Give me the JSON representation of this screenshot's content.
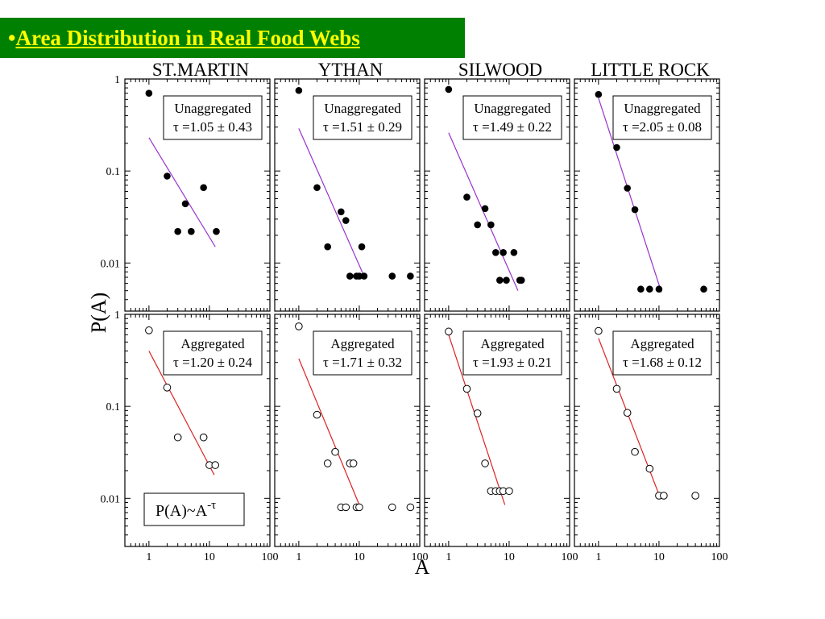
{
  "slide": {
    "bullet": "•",
    "title": "Area Distribution in Real Food Webs",
    "title_bg": "#008000",
    "title_color": "#ffff00"
  },
  "chart_data": {
    "type": "scatter",
    "ylabel": "P(A)",
    "xlabel": "A",
    "x_scale": "log",
    "y_scale": "log",
    "xlim": [
      0.4,
      100
    ],
    "ylim": [
      0.003,
      1
    ],
    "x_ticks": [
      "1",
      "10",
      "100"
    ],
    "y_ticks": [
      "0.01",
      "0.1",
      "1"
    ],
    "columns": [
      "ST.MARTIN",
      "YTHAN",
      "SILWOOD",
      "LITTLE ROCK"
    ],
    "formula_box": "P(A)~A",
    "formula_exp": "-τ",
    "panels": [
      {
        "web": "ST.MARTIN",
        "row": "top",
        "label": "Unaggregated",
        "tau": "τ =1.05 ± 0.43",
        "marker": "filled",
        "line_color": "#9933cc",
        "points": [
          [
            1,
            0.7
          ],
          [
            2,
            0.088
          ],
          [
            3,
            0.022
          ],
          [
            4,
            0.044
          ],
          [
            5,
            0.022
          ],
          [
            8,
            0.066
          ],
          [
            13,
            0.022
          ]
        ],
        "fit": [
          [
            1,
            0.23
          ],
          [
            12.5,
            0.015
          ]
        ]
      },
      {
        "web": "YTHAN",
        "row": "top",
        "label": "Unaggregated",
        "tau": "τ =1.51 ± 0.29",
        "marker": "filled",
        "line_color": "#9933cc",
        "points": [
          [
            1,
            0.75
          ],
          [
            2,
            0.066
          ],
          [
            3,
            0.015
          ],
          [
            5,
            0.036
          ],
          [
            6,
            0.029
          ],
          [
            7,
            0.0072
          ],
          [
            9,
            0.0072
          ],
          [
            10,
            0.0072
          ],
          [
            11,
            0.015
          ],
          [
            12,
            0.0072
          ],
          [
            35,
            0.0072
          ],
          [
            70,
            0.0072
          ]
        ],
        "fit": [
          [
            1,
            0.29
          ],
          [
            12,
            0.0072
          ]
        ]
      },
      {
        "web": "SILWOOD",
        "row": "top",
        "label": "Unaggregated",
        "tau": "τ =1.49 ± 0.22",
        "marker": "filled",
        "line_color": "#9933cc",
        "points": [
          [
            1,
            0.77
          ],
          [
            2,
            0.052
          ],
          [
            3,
            0.026
          ],
          [
            4,
            0.039
          ],
          [
            5,
            0.026
          ],
          [
            6,
            0.013
          ],
          [
            7,
            0.0065
          ],
          [
            8,
            0.013
          ],
          [
            9,
            0.0065
          ],
          [
            12,
            0.013
          ],
          [
            15,
            0.0065
          ],
          [
            16,
            0.0065
          ]
        ],
        "fit": [
          [
            1,
            0.26
          ],
          [
            14,
            0.005
          ]
        ]
      },
      {
        "web": "LITTLE ROCK",
        "row": "top",
        "label": "Unaggregated",
        "tau": "τ =2.05 ± 0.08",
        "marker": "filled",
        "line_color": "#9933cc",
        "points": [
          [
            1,
            0.68
          ],
          [
            2,
            0.18
          ],
          [
            3,
            0.065
          ],
          [
            4,
            0.038
          ],
          [
            5,
            0.0052
          ],
          [
            7,
            0.0052
          ],
          [
            10,
            0.0052
          ],
          [
            55,
            0.0052
          ]
        ],
        "fit": [
          [
            1,
            0.62
          ],
          [
            11,
            0.0048
          ]
        ]
      },
      {
        "web": "ST.MARTIN",
        "row": "bottom",
        "label": "Aggregated",
        "tau": "τ =1.20 ± 0.24",
        "marker": "open",
        "line_color": "#dd2222",
        "points": [
          [
            1,
            0.67
          ],
          [
            2,
            0.16
          ],
          [
            3,
            0.046
          ],
          [
            8,
            0.046
          ],
          [
            10,
            0.023
          ],
          [
            12.5,
            0.023
          ]
        ],
        "fit": [
          [
            1,
            0.4
          ],
          [
            12,
            0.018
          ]
        ]
      },
      {
        "web": "YTHAN",
        "row": "bottom",
        "label": "Aggregated",
        "tau": "τ =1.71 ± 0.32",
        "marker": "open",
        "line_color": "#dd2222",
        "points": [
          [
            1,
            0.74
          ],
          [
            2,
            0.081
          ],
          [
            3,
            0.024
          ],
          [
            4,
            0.032
          ],
          [
            5,
            0.008
          ],
          [
            6,
            0.008
          ],
          [
            7,
            0.024
          ],
          [
            8,
            0.024
          ],
          [
            9,
            0.008
          ],
          [
            10,
            0.008
          ],
          [
            35,
            0.008
          ],
          [
            70,
            0.008
          ]
        ],
        "fit": [
          [
            1,
            0.33
          ],
          [
            10,
            0.0085
          ]
        ]
      },
      {
        "web": "SILWOOD",
        "row": "bottom",
        "label": "Aggregated",
        "tau": "τ =1.93 ± 0.21",
        "marker": "open",
        "line_color": "#dd2222",
        "points": [
          [
            1,
            0.65
          ],
          [
            2,
            0.155
          ],
          [
            3,
            0.084
          ],
          [
            4,
            0.024
          ],
          [
            5,
            0.012
          ],
          [
            6,
            0.012
          ],
          [
            7,
            0.012
          ],
          [
            8,
            0.012
          ],
          [
            10,
            0.012
          ]
        ],
        "fit": [
          [
            1,
            0.6
          ],
          [
            8.5,
            0.0085
          ]
        ]
      },
      {
        "web": "LITTLE ROCK",
        "row": "bottom",
        "label": "Aggregated",
        "tau": "τ =1.68 ± 0.12",
        "marker": "open",
        "line_color": "#dd2222",
        "points": [
          [
            1,
            0.66
          ],
          [
            2,
            0.155
          ],
          [
            3,
            0.085
          ],
          [
            4,
            0.032
          ],
          [
            7,
            0.021
          ],
          [
            10,
            0.0107
          ],
          [
            12,
            0.0107
          ],
          [
            40,
            0.0107
          ]
        ],
        "fit": [
          [
            1,
            0.55
          ],
          [
            10,
            0.011
          ]
        ]
      }
    ]
  }
}
